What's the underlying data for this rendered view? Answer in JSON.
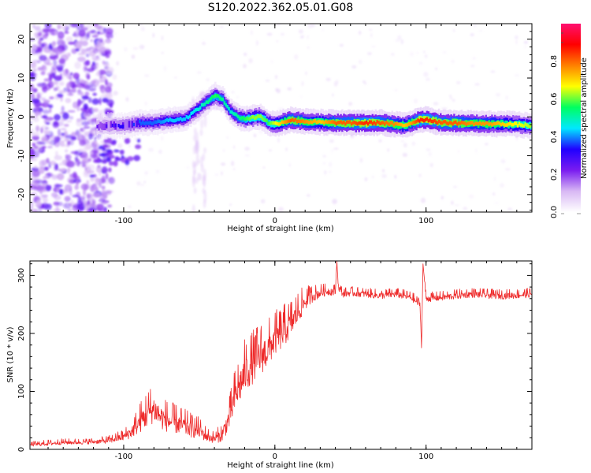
{
  "figure_title": "S120.2022.362.05.01.G08",
  "colors": {
    "snr_line": "#ee2a2a",
    "frame": "#000000",
    "background": "#ffffff",
    "colormap": [
      "#ffffff",
      "#d8b8f4",
      "#7a1cf0",
      "#2000ff",
      "#00e8ff",
      "#00ff60",
      "#ffff00",
      "#ff8000",
      "#ff0000",
      "#ff1070"
    ]
  },
  "chart_data": [
    {
      "type": "heatmap",
      "title": "S120.2022.362.05.01.G08",
      "xlabel": "Height of straight line (km)",
      "ylabel": "Frequency (Hz)",
      "xlim": [
        -162,
        170
      ],
      "ylim": [
        -24.5,
        24
      ],
      "x_ticks": [
        -100,
        0,
        100
      ],
      "x_tick_labels": [
        "-100",
        "0",
        "100"
      ],
      "y_ticks": [
        -20,
        -10,
        0,
        10,
        20
      ],
      "y_tick_labels": [
        "-20",
        "-10",
        "0",
        "10",
        "20"
      ],
      "colorbar": {
        "label": "Normalized spectral amplitude",
        "range": [
          0,
          1
        ],
        "ticks": [
          0.0,
          0.2,
          0.4,
          0.6,
          0.8
        ],
        "tick_labels": [
          "0.0",
          "0.2",
          "0.4",
          "0.6",
          "0.8"
        ]
      },
      "ridge": {
        "x": [
          -118,
          -110,
          -100,
          -90,
          -80,
          -70,
          -60,
          -50,
          -45,
          -40,
          -35,
          -30,
          -25,
          -20,
          -15,
          -10,
          -5,
          0,
          10,
          20,
          30,
          40,
          50,
          60,
          70,
          80,
          85,
          90,
          95,
          100,
          110,
          120,
          130,
          140,
          150,
          160,
          170
        ],
        "y": [
          -2.5,
          -2.2,
          -2.3,
          -1.5,
          -1.5,
          -0.8,
          -0.5,
          2.5,
          4.0,
          5.5,
          4.5,
          1.5,
          0.0,
          -0.5,
          -0.2,
          0.2,
          -1.5,
          -1.8,
          -0.8,
          -1.2,
          -1.4,
          -1.5,
          -1.6,
          -1.6,
          -1.5,
          -2.0,
          -2.2,
          -1.5,
          -0.8,
          -0.7,
          -1.5,
          -1.6,
          -1.7,
          -1.8,
          -1.8,
          -2.0,
          -2.3
        ],
        "amplitude": [
          0.25,
          0.3,
          0.35,
          0.4,
          0.4,
          0.45,
          0.45,
          0.5,
          0.55,
          0.6,
          0.55,
          0.5,
          0.55,
          0.6,
          0.65,
          0.65,
          0.6,
          0.7,
          0.85,
          0.8,
          0.75,
          0.85,
          0.85,
          0.9,
          0.85,
          0.8,
          0.75,
          0.8,
          0.9,
          0.9,
          0.85,
          0.85,
          0.8,
          0.8,
          0.75,
          0.7,
          0.65
        ]
      },
      "noise_region": {
        "x_range": [
          -162,
          -108
        ],
        "y_range": [
          -24.5,
          24
        ],
        "amplitude_max": 0.2
      }
    },
    {
      "type": "line",
      "xlabel": "Height of straight line (km)",
      "ylabel": "SNR (10 * v/v)",
      "xlim": [
        -162,
        170
      ],
      "ylim": [
        0,
        325
      ],
      "x_ticks": [
        -100,
        0,
        100
      ],
      "x_tick_labels": [
        "-100",
        "0",
        "100"
      ],
      "y_ticks": [
        0,
        100,
        200,
        300
      ],
      "y_tick_labels": [
        "0",
        "100",
        "200",
        "300"
      ],
      "series": [
        {
          "x": [
            -162,
            -150,
            -140,
            -130,
            -120,
            -110,
            -100,
            -95,
            -90,
            -85,
            -80,
            -75,
            -70,
            -65,
            -60,
            -55,
            -50,
            -45,
            -40,
            -35,
            -30,
            -27,
            -25,
            -20,
            -15,
            -10,
            -5,
            0,
            5,
            10,
            15,
            20,
            25,
            30,
            35,
            40,
            41,
            42,
            45,
            50,
            60,
            70,
            80,
            90,
            96,
            97,
            98,
            100,
            110,
            120,
            130,
            140,
            150,
            160,
            170
          ],
          "y": [
            8,
            10,
            12,
            12,
            13,
            15,
            22,
            30,
            45,
            60,
            70,
            55,
            48,
            45,
            40,
            35,
            32,
            22,
            18,
            25,
            55,
            85,
            100,
            130,
            145,
            160,
            170,
            190,
            200,
            215,
            235,
            255,
            265,
            270,
            273,
            272,
            325,
            280,
            268,
            270,
            268,
            265,
            268,
            262,
            250,
            175,
            320,
            260,
            262,
            265,
            268,
            266,
            265,
            266,
            268
          ],
          "noise_amplitude": [
            5,
            6,
            6,
            6,
            6,
            8,
            12,
            18,
            30,
            40,
            40,
            35,
            32,
            30,
            28,
            25,
            22,
            15,
            12,
            20,
            35,
            45,
            50,
            55,
            55,
            55,
            50,
            45,
            45,
            40,
            35,
            25,
            18,
            14,
            12,
            12,
            0,
            10,
            10,
            10,
            10,
            10,
            10,
            10,
            10,
            0,
            0,
            10,
            10,
            10,
            10,
            10,
            10,
            10,
            10
          ]
        }
      ]
    }
  ]
}
